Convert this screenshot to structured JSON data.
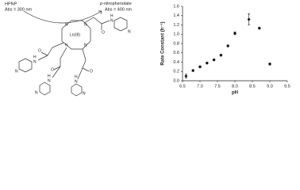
{
  "diagram": {
    "reactant": "HPNP",
    "reactant_abs": "Abs = 300 nm",
    "product_prefix": "p",
    "product": "-nitrophenolate",
    "product_abs": "Abs = 400 nm",
    "metal": "Ln(III)",
    "atoms": [
      "N",
      "N",
      "N",
      "N",
      "O",
      "O",
      "O",
      "O",
      "H",
      "N",
      "H",
      "N",
      "H",
      "N",
      "H",
      "N",
      "N",
      "N",
      "N",
      "N"
    ]
  },
  "chart_data": {
    "type": "scatter",
    "xlabel": "pH",
    "ylabel": "Rate Constant (h⁻¹)",
    "x": [
      6.6,
      6.8,
      7.0,
      7.2,
      7.4,
      7.6,
      7.8,
      8.0,
      8.4,
      8.7,
      9.0
    ],
    "series": [
      {
        "name": "k",
        "color": "#111111",
        "values": [
          0.1,
          0.22,
          0.3,
          0.38,
          0.45,
          0.55,
          0.75,
          1.02,
          1.32,
          1.13,
          0.36
        ],
        "errors": [
          0.04,
          0.02,
          0.02,
          0.02,
          0.02,
          0.02,
          0.02,
          0.03,
          0.12,
          0.02,
          0.02
        ]
      }
    ],
    "xlim": [
      6.5,
      9.5
    ],
    "xticks": [
      6.5,
      {
        "value": 7,
        "label": "7.0"
      },
      7.5,
      {
        "value": 8,
        "label": "8.0"
      },
      8.5,
      {
        "value": 9,
        "label": "9.0"
      },
      9.5
    ],
    "ylim": [
      0,
      1.6
    ],
    "yticks": [
      {
        "value": 0,
        "label": "0.0"
      },
      0.2,
      0.4,
      0.6,
      0.8,
      {
        "value": 1,
        "label": "1.0"
      },
      1.2,
      1.4,
      1.6
    ]
  }
}
